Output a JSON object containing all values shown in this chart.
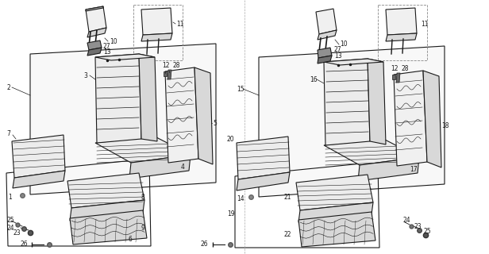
{
  "bg_color": "#ffffff",
  "line_color": "#1a1a1a",
  "fill_light": "#f0f0f0",
  "fill_mid": "#d8d8d8",
  "fill_dark": "#b8b8b8",
  "figsize": [
    6.16,
    3.2
  ],
  "dpi": 100
}
